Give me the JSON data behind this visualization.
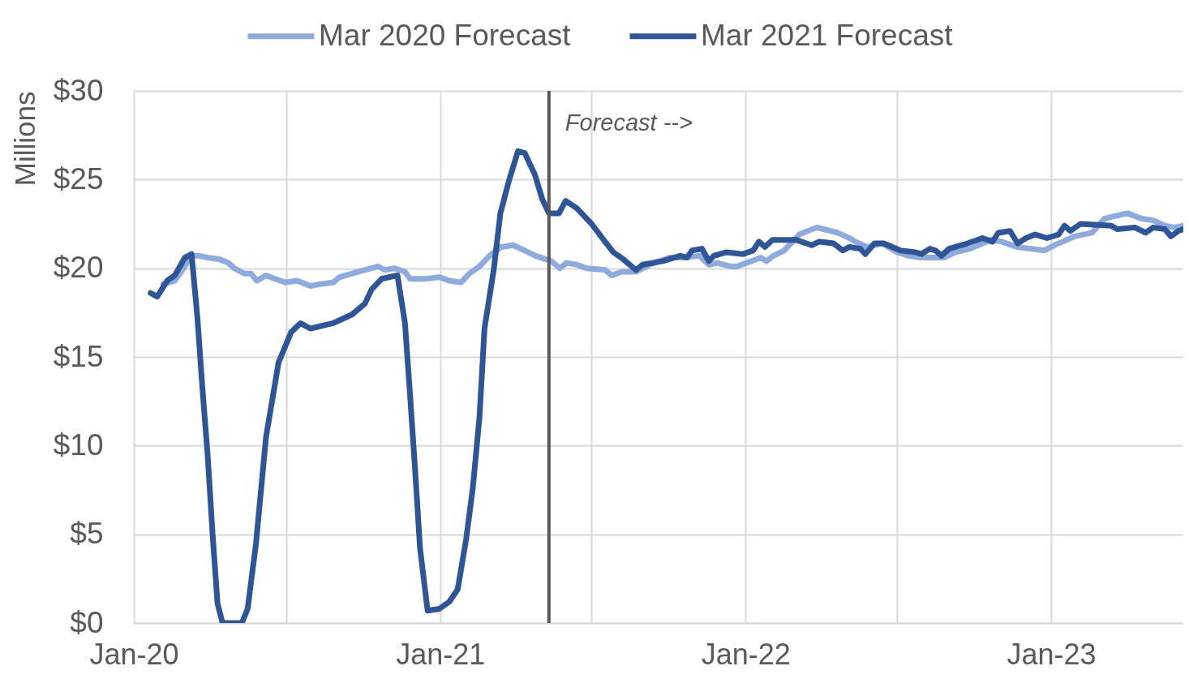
{
  "chart_data": {
    "type": "line",
    "ylabel": "Millions",
    "legend": "top",
    "grid": true,
    "line_style": "solid",
    "xlim": [
      "2020-01-01",
      "2023-06-08"
    ],
    "xticks": [
      {
        "value": "2020-01-01",
        "label": "Jan-20"
      },
      {
        "value": "2020-07-01",
        "label": null
      },
      {
        "value": "2021-01-01",
        "label": "Jan-21"
      },
      {
        "value": "2021-07-01",
        "label": null
      },
      {
        "value": "2022-01-01",
        "label": "Jan-22"
      },
      {
        "value": "2022-07-01",
        "label": null
      },
      {
        "value": "2023-01-01",
        "label": "Jan-23"
      }
    ],
    "ylim": [
      0,
      30
    ],
    "yticks": [
      {
        "value": 0,
        "label": "$0"
      },
      {
        "value": 5,
        "label": "$5"
      },
      {
        "value": 10,
        "label": "$10"
      },
      {
        "value": 15,
        "label": "$15"
      },
      {
        "value": 20,
        "label": "$20"
      },
      {
        "value": 25,
        "label": "$25"
      },
      {
        "value": 30,
        "label": "$30"
      }
    ],
    "ref_lines": [
      {
        "axis": "x",
        "value": "2021-05-11",
        "label": "Forecast -->",
        "color": "#595959"
      }
    ],
    "series": [
      {
        "name": "Mar 2020 Forecast",
        "color": "#8faadc",
        "x": [
          "2020-02-05",
          "2020-02-19",
          "2020-02-28",
          "2020-03-10",
          "2020-03-19",
          "2020-03-29",
          "2020-04-13",
          "2020-04-23",
          "2020-04-30",
          "2020-05-12",
          "2020-05-20",
          "2020-05-27",
          "2020-06-07",
          "2020-06-18",
          "2020-06-30",
          "2020-07-14",
          "2020-07-30",
          "2020-08-10",
          "2020-08-26",
          "2020-09-03",
          "2020-09-18",
          "2020-10-03",
          "2020-10-19",
          "2020-10-27",
          "2020-11-07",
          "2020-11-20",
          "2020-11-26",
          "2020-12-15",
          "2020-12-31",
          "2021-01-12",
          "2021-01-26",
          "2021-02-05",
          "2021-02-17",
          "2021-03-01",
          "2021-03-15",
          "2021-03-29",
          "2021-04-12",
          "2021-04-25",
          "2021-05-14",
          "2021-05-24",
          "2021-06-01",
          "2021-06-13",
          "2021-06-25",
          "2021-07-17",
          "2021-07-25",
          "2021-08-06",
          "2021-08-23",
          "2021-09-08",
          "2021-10-02",
          "2021-10-18",
          "2021-11-07",
          "2021-11-18",
          "2021-11-28",
          "2021-12-14",
          "2021-12-21",
          "2022-01-08",
          "2022-01-19",
          "2022-01-26",
          "2022-02-03",
          "2022-02-16",
          "2022-03-06",
          "2022-03-27",
          "2022-04-21",
          "2022-05-05",
          "2022-05-12",
          "2022-05-26",
          "2022-06-13",
          "2022-07-01",
          "2022-07-15",
          "2022-07-29",
          "2022-08-12",
          "2022-08-26",
          "2022-09-08",
          "2022-09-26",
          "2022-10-21",
          "2022-11-03",
          "2022-11-21",
          "2022-12-08",
          "2022-12-24",
          "2023-01-05",
          "2023-01-15",
          "2023-01-29",
          "2023-02-19",
          "2023-03-06",
          "2023-04-02",
          "2023-04-19",
          "2023-05-03",
          "2023-05-17",
          "2023-05-28",
          "2023-06-08"
        ],
        "values": [
          19.1,
          19.3,
          19.9,
          20.7,
          20.7,
          20.6,
          20.5,
          20.3,
          20.0,
          19.7,
          19.7,
          19.3,
          19.6,
          19.4,
          19.2,
          19.3,
          19.0,
          19.1,
          19.2,
          19.5,
          19.7,
          19.9,
          20.1,
          19.9,
          20.0,
          19.8,
          19.4,
          19.4,
          19.5,
          19.3,
          19.2,
          19.7,
          20.1,
          20.7,
          21.2,
          21.3,
          21.0,
          20.7,
          20.4,
          20.0,
          20.3,
          20.2,
          20.0,
          19.9,
          19.6,
          19.8,
          19.8,
          20.2,
          20.6,
          20.6,
          20.7,
          20.2,
          20.3,
          20.1,
          20.1,
          20.4,
          20.6,
          20.4,
          20.7,
          21.0,
          21.9,
          22.3,
          22.0,
          21.7,
          21.5,
          21.2,
          21.4,
          20.9,
          20.7,
          20.6,
          20.6,
          20.6,
          20.9,
          21.1,
          21.6,
          21.5,
          21.2,
          21.1,
          21.0,
          21.3,
          21.5,
          21.8,
          22.0,
          22.8,
          23.1,
          22.8,
          22.7,
          22.4,
          22.3,
          22.4
        ]
      },
      {
        "name": "Mar 2021 Forecast",
        "color": "#2f5597",
        "x": [
          "2020-01-21",
          "2020-01-29",
          "2020-02-10",
          "2020-02-19",
          "2020-03-02",
          "2020-03-10",
          "2020-03-17",
          "2020-03-23",
          "2020-03-29",
          "2020-04-04",
          "2020-04-10",
          "2020-04-16",
          "2020-05-09",
          "2020-05-16",
          "2020-05-26",
          "2020-06-07",
          "2020-06-22",
          "2020-07-07",
          "2020-07-18",
          "2020-07-30",
          "2020-08-26",
          "2020-09-18",
          "2020-10-03",
          "2020-10-11",
          "2020-10-23",
          "2020-11-11",
          "2020-11-20",
          "2020-11-26",
          "2020-12-02",
          "2020-12-08",
          "2020-12-17",
          "2020-12-31",
          "2021-01-12",
          "2021-01-22",
          "2021-02-01",
          "2021-02-09",
          "2021-02-17",
          "2021-02-23",
          "2021-03-06",
          "2021-03-14",
          "2021-03-24",
          "2021-04-04",
          "2021-04-12",
          "2021-04-24",
          "2021-05-03",
          "2021-05-11",
          "2021-05-23",
          "2021-05-31",
          "2021-06-13",
          "2021-07-01",
          "2021-07-17",
          "2021-07-27",
          "2021-08-08",
          "2021-08-23",
          "2021-08-31",
          "2021-09-24",
          "2021-10-15",
          "2021-10-23",
          "2021-10-29",
          "2021-11-10",
          "2021-11-18",
          "2021-11-24",
          "2021-12-09",
          "2021-12-29",
          "2022-01-10",
          "2022-01-17",
          "2022-01-24",
          "2022-02-02",
          "2022-03-02",
          "2022-03-21",
          "2022-03-30",
          "2022-04-16",
          "2022-04-27",
          "2022-05-05",
          "2022-05-18",
          "2022-05-24",
          "2022-06-04",
          "2022-06-15",
          "2022-07-05",
          "2022-07-23",
          "2022-07-30",
          "2022-08-09",
          "2022-08-16",
          "2022-08-23",
          "2022-09-01",
          "2022-09-23",
          "2022-10-11",
          "2022-10-23",
          "2022-10-30",
          "2022-11-13",
          "2022-11-22",
          "2022-12-02",
          "2022-12-13",
          "2022-12-27",
          "2023-01-10",
          "2023-01-17",
          "2023-01-24",
          "2023-02-05",
          "2023-03-14",
          "2023-03-21",
          "2023-04-11",
          "2023-04-24",
          "2023-05-03",
          "2023-05-17",
          "2023-05-24",
          "2023-06-02",
          "2023-06-08"
        ],
        "values": [
          18.6,
          18.4,
          19.3,
          19.6,
          20.6,
          20.8,
          17.2,
          13.2,
          9.6,
          5.1,
          1.1,
          0,
          0,
          0.8,
          4.5,
          10.5,
          14.7,
          16.4,
          16.9,
          16.6,
          16.9,
          17.4,
          18.0,
          18.8,
          19.4,
          19.6,
          16.9,
          12.9,
          8.7,
          4.2,
          0.7,
          0.8,
          1.2,
          1.9,
          4.7,
          7.6,
          11.6,
          16.6,
          19.9,
          23.1,
          24.9,
          26.6,
          26.5,
          25.3,
          23.9,
          23.1,
          23.1,
          23.8,
          23.4,
          22.5,
          21.5,
          20.9,
          20.5,
          19.9,
          20.2,
          20.4,
          20.7,
          20.6,
          21.0,
          21.1,
          20.4,
          20.7,
          20.9,
          20.8,
          21.0,
          21.5,
          21.2,
          21.6,
          21.6,
          21.3,
          21.5,
          21.4,
          21.0,
          21.2,
          21.1,
          20.8,
          21.4,
          21.4,
          21.0,
          20.9,
          20.8,
          21.1,
          21.0,
          20.7,
          21.1,
          21.4,
          21.7,
          21.5,
          22.0,
          22.1,
          21.4,
          21.7,
          21.9,
          21.7,
          21.9,
          22.4,
          22.1,
          22.5,
          22.4,
          22.2,
          22.3,
          22.0,
          22.3,
          22.2,
          21.8,
          22.1,
          22.2
        ]
      }
    ]
  }
}
